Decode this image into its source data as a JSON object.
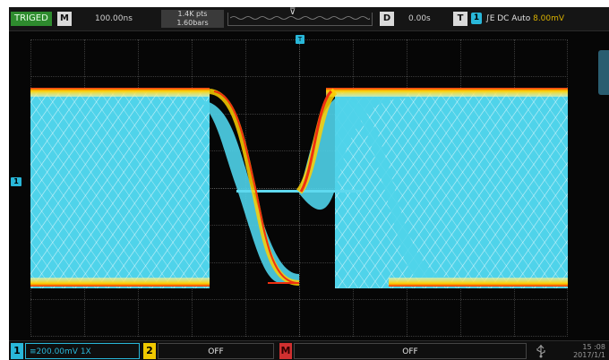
{
  "topbar": {
    "status": "TRIGED",
    "mode_badge": "M",
    "timebase": "100.00ns",
    "acq_rate": "1.4K pts",
    "acq_depth": "1.60bars",
    "delay_badge": "D",
    "delay_value": "0.00s",
    "trigger_badge": "T",
    "trigger_source": "1",
    "trigger_info": "∫E DC Auto",
    "trigger_level": "8.00mV"
  },
  "graticule": {
    "trigger_position_marker": "T",
    "channel_offset_marker": "1"
  },
  "bottombar": {
    "ch1_num": "1",
    "ch1_value": "≡200.00mV  1X",
    "ch2_num": "2",
    "ch2_value": "OFF",
    "math_num": "M",
    "math_value": "OFF",
    "time": "15 :08",
    "date": "2017/1/1"
  },
  "colors": {
    "ch1": "#29b7d9",
    "ch2": "#f0c800",
    "math": "#d03030",
    "trig_status_bg": "#2e8b2e"
  },
  "icons": {
    "usb": "usb-icon",
    "memory_marker": "trigger-position-icon"
  }
}
